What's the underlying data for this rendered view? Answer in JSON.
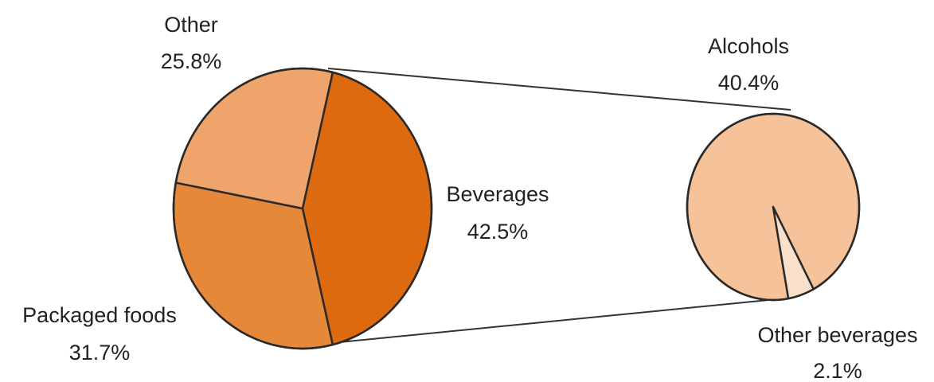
{
  "chart_data": [
    {
      "type": "pie",
      "slices": [
        {
          "label": "Beverages",
          "value": 42.5,
          "value_label": "42.5%",
          "color": "#de6a10"
        },
        {
          "label": "Packaged foods",
          "value": 31.7,
          "value_label": "31.7%",
          "color": "#e6883a"
        },
        {
          "label": "Other",
          "value": 25.8,
          "value_label": "25.8%",
          "color": "#efa46c"
        }
      ],
      "exploded_slice": "Beverages"
    },
    {
      "type": "pie",
      "parent_slice": "Beverages",
      "slices": [
        {
          "label": "Alcohols",
          "value": 40.4,
          "value_label": "40.4%",
          "color": "#f5c299"
        },
        {
          "label": "Other beverages",
          "value": 2.1,
          "value_label": "2.1%",
          "color": "#fbe0c9"
        }
      ]
    }
  ]
}
